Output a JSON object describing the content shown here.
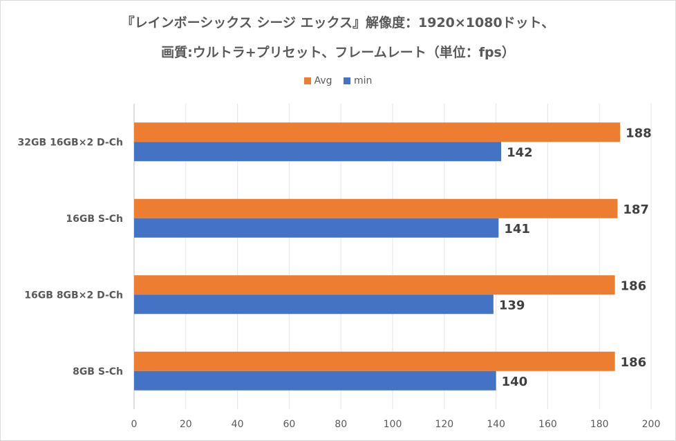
{
  "chart_data": {
    "type": "bar",
    "orientation": "horizontal",
    "title_lines": [
      "『レインボーシックス シージ エックス』解像度：1920×1080ドット、",
      "画質:ウルトラ+プリセット、フレームレート（単位：fps）"
    ],
    "categories": [
      "32GB 16GB×2 D-Ch",
      "16GB S-Ch",
      "16GB 8GB×2 D-Ch",
      "8GB S-Ch"
    ],
    "series": [
      {
        "name": "Avg",
        "color": "#ed7d31",
        "values": [
          188,
          187,
          186,
          186
        ]
      },
      {
        "name": "min",
        "color": "#4472c4",
        "values": [
          142,
          141,
          139,
          140
        ]
      }
    ],
    "xlim": [
      0,
      200
    ],
    "xticks": [
      0,
      20,
      40,
      60,
      80,
      100,
      120,
      140,
      160,
      180,
      200
    ],
    "legend_position": "top",
    "grid": true
  }
}
